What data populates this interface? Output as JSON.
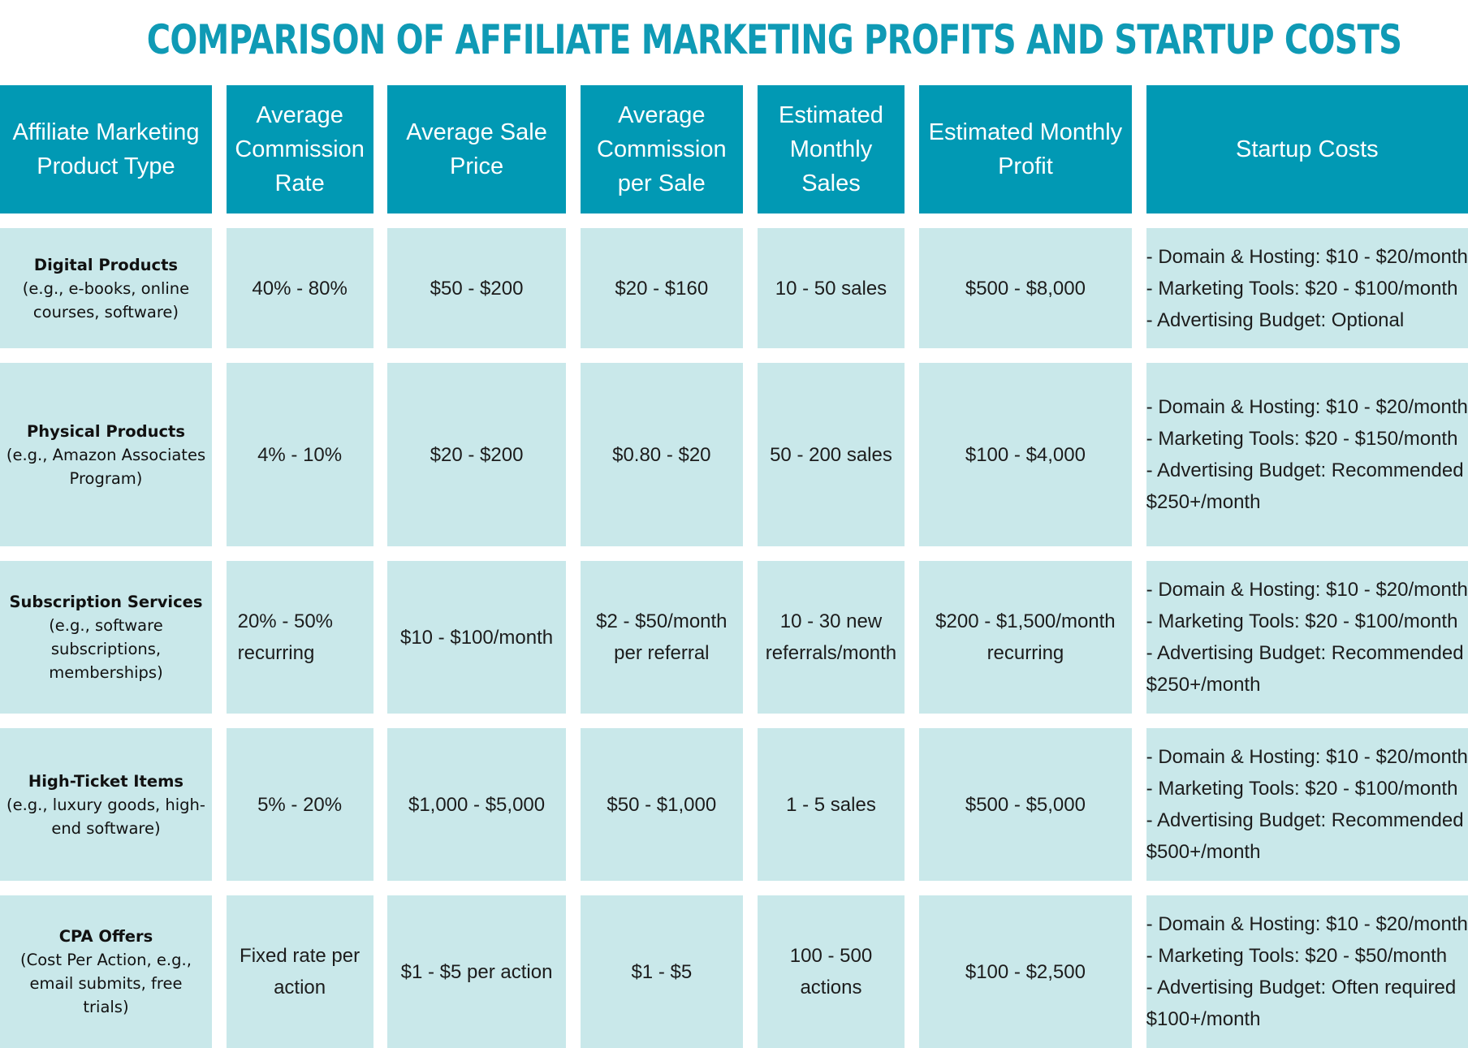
{
  "title": "COMPARISON OF AFFILIATE MARKETING PROFITS AND STARTUP COSTS",
  "colors": {
    "title": "#0f9ab5",
    "header_bg": "#0199b4",
    "header_text": "#ffffff",
    "cell_bg": "#c9e8ea"
  },
  "headers": [
    "Affiliate Marketing Product Type",
    "Average Commission Rate",
    "Average Sale Price",
    "Average Commission per Sale",
    "Estimated Monthly Sales",
    "Estimated Monthly Profit",
    "Startup Costs"
  ],
  "rows": [
    {
      "type_name": "Digital Products",
      "type_desc": "(e.g., e-books, online courses, software)",
      "commission_rate": "40% - 80%",
      "sale_price": "$50 - $200",
      "commission_per_sale": "$20 - $160",
      "monthly_sales": "10 - 50 sales",
      "monthly_profit": "$500 - $8,000",
      "startup_costs": [
        "- Domain & Hosting: $10 - $20/month",
        "- Marketing Tools: $20 - $100/month",
        "- Advertising Budget: Optional"
      ]
    },
    {
      "type_name": "Physical Products",
      "type_desc": "(e.g., Amazon Associates Program)",
      "commission_rate": "4% - 10%",
      "sale_price": "$20 - $200",
      "commission_per_sale": "$0.80 - $20",
      "monthly_sales": "50 - 200 sales",
      "monthly_profit": "$100 - $4,000",
      "startup_costs": [
        "- Domain & Hosting: $10 - $20/month",
        "- Marketing Tools: $20 - $150/month",
        "- Advertising Budget: Recommended",
        "$250+/month"
      ]
    },
    {
      "type_name": "Subscription Services",
      "type_desc": "(e.g., software subscriptions, memberships)",
      "commission_rate": "20% - 50% recurring",
      "sale_price": "$10 - $100/month",
      "commission_per_sale": "$2 - $50/month per referral",
      "monthly_sales": "10 - 30 new referrals/month",
      "monthly_profit": "$200 - $1,500/month recurring",
      "startup_costs": [
        "- Domain & Hosting: $10 - $20/month",
        "- Marketing Tools: $20 - $100/month",
        "- Advertising Budget: Recommended",
        "$250+/month"
      ]
    },
    {
      "type_name": "High-Ticket Items",
      "type_desc": "(e.g., luxury goods, high-end software)",
      "commission_rate": "5% - 20%",
      "sale_price": "$1,000 - $5,000",
      "commission_per_sale": "$50 - $1,000",
      "monthly_sales": "1 - 5 sales",
      "monthly_profit": "$500 - $5,000",
      "startup_costs": [
        "- Domain & Hosting: $10 - $20/month",
        "- Marketing Tools: $20 - $100/month",
        "- Advertising Budget: Recommended",
        "$500+/month"
      ]
    },
    {
      "type_name": "CPA Offers",
      "type_desc": "(Cost Per Action, e.g., email submits, free trials)",
      "commission_rate": "Fixed rate per action",
      "sale_price": "$1 - $5 per action",
      "commission_per_sale": "$1 - $5",
      "monthly_sales": "100 - 500 actions",
      "monthly_profit": "$100 - $2,500",
      "startup_costs": [
        "- Domain & Hosting: $10 - $20/month",
        "- Marketing Tools: $20 - $50/month",
        "- Advertising Budget: Often required",
        "$100+/month"
      ]
    }
  ]
}
